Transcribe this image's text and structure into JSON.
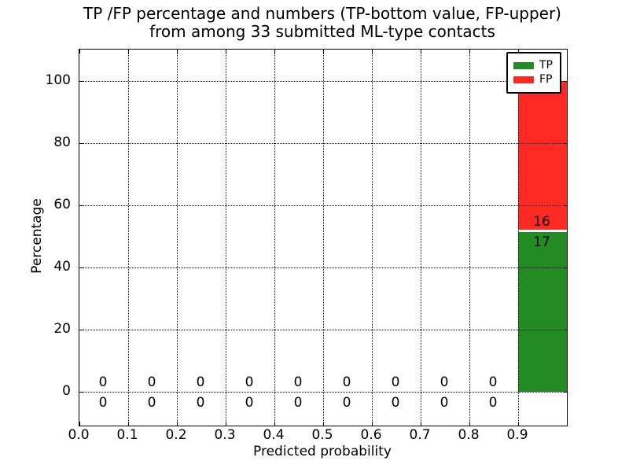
{
  "figure": {
    "title_line1": "TP /FP percentage and numbers (TP-bottom value, FP-upper)",
    "title_line2": "from among 33 submitted ML-type contacts",
    "xlabel": "Predicted probability",
    "ylabel": "Percentage"
  },
  "legend": {
    "position": "upper right",
    "items": [
      {
        "label": "TP",
        "color": "#228b22"
      },
      {
        "label": "FP",
        "color": "#fc2a22"
      }
    ]
  },
  "chart_data": {
    "type": "bar",
    "stacked": true,
    "title": "TP /FP percentage and numbers (TP-bottom value, FP-upper)\nfrom among 33 submitted ML-type contacts",
    "xlabel": "Predicted probability",
    "ylabel": "Percentage",
    "total_contacts": 33,
    "xlim": [
      0.0,
      1.0
    ],
    "ylim": [
      -11,
      110
    ],
    "xticks": [
      "0.0",
      "0.1",
      "0.2",
      "0.3",
      "0.4",
      "0.5",
      "0.6",
      "0.7",
      "0.8",
      "0.9"
    ],
    "xtick_values": [
      0.0,
      0.1,
      0.2,
      0.3,
      0.4,
      0.5,
      0.6,
      0.7,
      0.8,
      0.9
    ],
    "yticks": [
      0,
      20,
      40,
      60,
      80,
      100
    ],
    "grid": true,
    "bin_width": 0.1,
    "bin_centers": [
      0.05,
      0.15,
      0.25,
      0.35,
      0.45,
      0.55,
      0.65,
      0.75,
      0.85,
      0.95
    ],
    "series": [
      {
        "name": "TP",
        "color": "#228b22",
        "counts": [
          0,
          0,
          0,
          0,
          0,
          0,
          0,
          0,
          0,
          17
        ],
        "percent": [
          0,
          0,
          0,
          0,
          0,
          0,
          0,
          0,
          0,
          51.52
        ]
      },
      {
        "name": "FP",
        "color": "#fc2a22",
        "counts": [
          0,
          0,
          0,
          0,
          0,
          0,
          0,
          0,
          0,
          16
        ],
        "percent": [
          0,
          0,
          0,
          0,
          0,
          0,
          0,
          0,
          0,
          48.48
        ]
      }
    ]
  }
}
